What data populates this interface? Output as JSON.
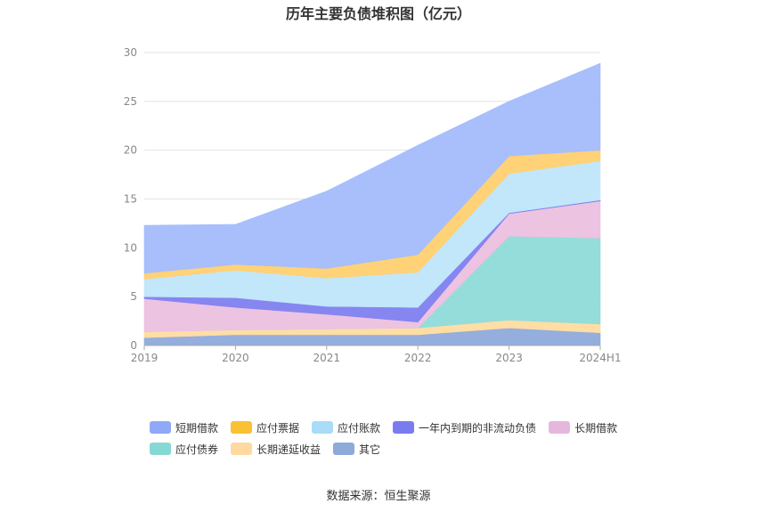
{
  "chart_data": {
    "type": "area",
    "stacked": true,
    "title": "历年主要负债堆积图（亿元）",
    "categories": [
      "2019",
      "2020",
      "2021",
      "2022",
      "2023",
      "2024H1"
    ],
    "ylim": [
      0,
      30
    ],
    "yticks": [
      0,
      5,
      10,
      15,
      20,
      25,
      30
    ],
    "grid": true,
    "legend_position": "bottom",
    "series": [
      {
        "name": "其它",
        "color": "#8eaadb",
        "values": [
          0.8,
          1.1,
          1.1,
          1.1,
          1.8,
          1.3
        ]
      },
      {
        "name": "长期递延收益",
        "color": "#ffdca0",
        "values": [
          0.6,
          0.5,
          0.6,
          0.7,
          0.8,
          0.9
        ]
      },
      {
        "name": "应付债券",
        "color": "#8fdbd8",
        "values": [
          0,
          0,
          0,
          0,
          8.6,
          8.8
        ]
      },
      {
        "name": "长期借款",
        "color": "#ecc0e0",
        "values": [
          3.4,
          2.3,
          1.5,
          0.6,
          2.3,
          3.8
        ]
      },
      {
        "name": "一年内到期的非流动负债",
        "color": "#8080f0",
        "values": [
          0.2,
          1.0,
          0.8,
          1.5,
          0.1,
          0.1
        ]
      },
      {
        "name": "应付账款",
        "color": "#bfe6fa",
        "values": [
          1.8,
          2.8,
          2.9,
          3.6,
          4.0,
          4.0
        ]
      },
      {
        "name": "应付票据",
        "color": "#ffd070",
        "values": [
          0.6,
          0.6,
          1.0,
          1.8,
          1.8,
          1.1
        ]
      },
      {
        "name": "短期借款",
        "color": "#a3bcfc",
        "values": [
          4.9,
          4.1,
          7.9,
          11.2,
          5.6,
          8.9
        ]
      }
    ],
    "legend": [
      {
        "name": "短期借款",
        "color": "#8fa8f8"
      },
      {
        "name": "应付票据",
        "color": "#fac132"
      },
      {
        "name": "应付账款",
        "color": "#a8dcf8"
      },
      {
        "name": "一年内到期的非流动负债",
        "color": "#7b7bf0"
      },
      {
        "name": "长期借款",
        "color": "#e6b7dc"
      },
      {
        "name": "应付债券",
        "color": "#86d8d4"
      },
      {
        "name": "长期递延收益",
        "color": "#ffd9a0"
      },
      {
        "name": "其它",
        "color": "#8eaad8"
      }
    ]
  },
  "source_text": "数据来源：恒生聚源"
}
